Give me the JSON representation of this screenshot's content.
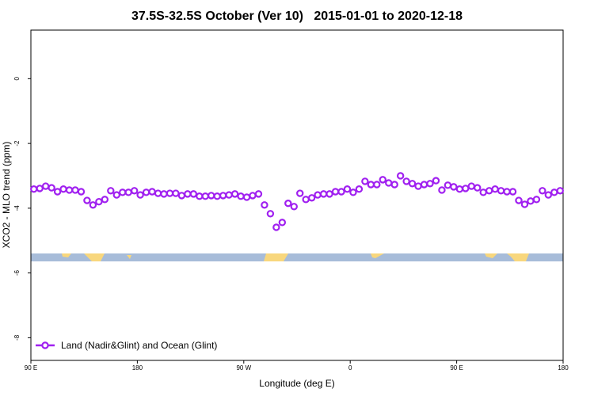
{
  "chart_data": {
    "type": "line",
    "title": "37.5S-32.5S October (Ver 10)   2015-01-01 to 2020-12-18",
    "x_label": "Longitude (deg E)",
    "y_label": "XCO2 - MLO trend (ppm)",
    "x": [
      92.5,
      97.5,
      102.5,
      107.5,
      112.5,
      117.5,
      122.5,
      127.5,
      132.5,
      137.5,
      142.5,
      147.5,
      152.5,
      157.5,
      162.5,
      167.5,
      172.5,
      177.5,
      182.5,
      187.5,
      192.5,
      197.5,
      202.5,
      207.5,
      212.5,
      217.5,
      222.5,
      227.5,
      232.5,
      237.5,
      242.5,
      247.5,
      252.5,
      257.5,
      262.5,
      267.5,
      272.5,
      277.5,
      282.5,
      287.5,
      292.5,
      297.5,
      302.5,
      307.5,
      312.5,
      317.5,
      322.5,
      327.5,
      332.5,
      337.5,
      342.5,
      347.5,
      352.5,
      357.5,
      362.5,
      367.5,
      372.5,
      377.5,
      382.5,
      387.5,
      392.5,
      397.5,
      402.5,
      407.5,
      412.5,
      417.5,
      422.5,
      427.5,
      432.5,
      437.5,
      442.5,
      447.5,
      452.5,
      457.5,
      462.5,
      467.5,
      472.5,
      477.5,
      482.5,
      487.5,
      492.5,
      497.5,
      502.5,
      507.5,
      512.5,
      517.5,
      522.5,
      527.5,
      532.5,
      537.5
    ],
    "series": [
      {
        "name": "Land (Nadir&Glint) and Ocean (Glint)",
        "color": "#a020f0",
        "values": [
          -3.41,
          -3.39,
          -3.32,
          -3.37,
          -3.49,
          -3.41,
          -3.44,
          -3.44,
          -3.49,
          -3.76,
          -3.9,
          -3.8,
          -3.73,
          -3.46,
          -3.59,
          -3.51,
          -3.51,
          -3.46,
          -3.59,
          -3.51,
          -3.49,
          -3.54,
          -3.56,
          -3.54,
          -3.54,
          -3.61,
          -3.56,
          -3.56,
          -3.63,
          -3.63,
          -3.61,
          -3.63,
          -3.61,
          -3.59,
          -3.56,
          -3.63,
          -3.66,
          -3.61,
          -3.56,
          -3.9,
          -4.17,
          -4.59,
          -4.44,
          -3.85,
          -3.95,
          -3.54,
          -3.73,
          -3.68,
          -3.59,
          -3.56,
          -3.56,
          -3.49,
          -3.49,
          -3.41,
          -3.51,
          -3.41,
          -3.17,
          -3.27,
          -3.27,
          -3.12,
          -3.22,
          -3.27,
          -3.0,
          -3.17,
          -3.24,
          -3.32,
          -3.27,
          -3.24,
          -3.15,
          -3.44,
          -3.29,
          -3.34,
          -3.41,
          -3.39,
          -3.32,
          -3.37,
          -3.51,
          -3.46,
          -3.41,
          -3.46,
          -3.49,
          -3.49,
          -3.76,
          -3.88,
          -3.78,
          -3.73,
          -3.46,
          -3.59,
          -3.51,
          -3.46
        ]
      }
    ],
    "xlim": [
      90,
      540
    ],
    "xticks": [
      {
        "value": 90,
        "label": "90 E"
      },
      180,
      {
        "value": 270,
        "label": "90 W"
      },
      {
        "value": 360,
        "label": "0"
      },
      {
        "value": 450,
        "label": "90 E"
      },
      {
        "value": 540,
        "label": "180"
      }
    ],
    "ylim": [
      -8.7,
      1.5
    ],
    "yticks": [
      0,
      -2,
      -4,
      -6,
      -8
    ],
    "legend": "bottom-left"
  }
}
